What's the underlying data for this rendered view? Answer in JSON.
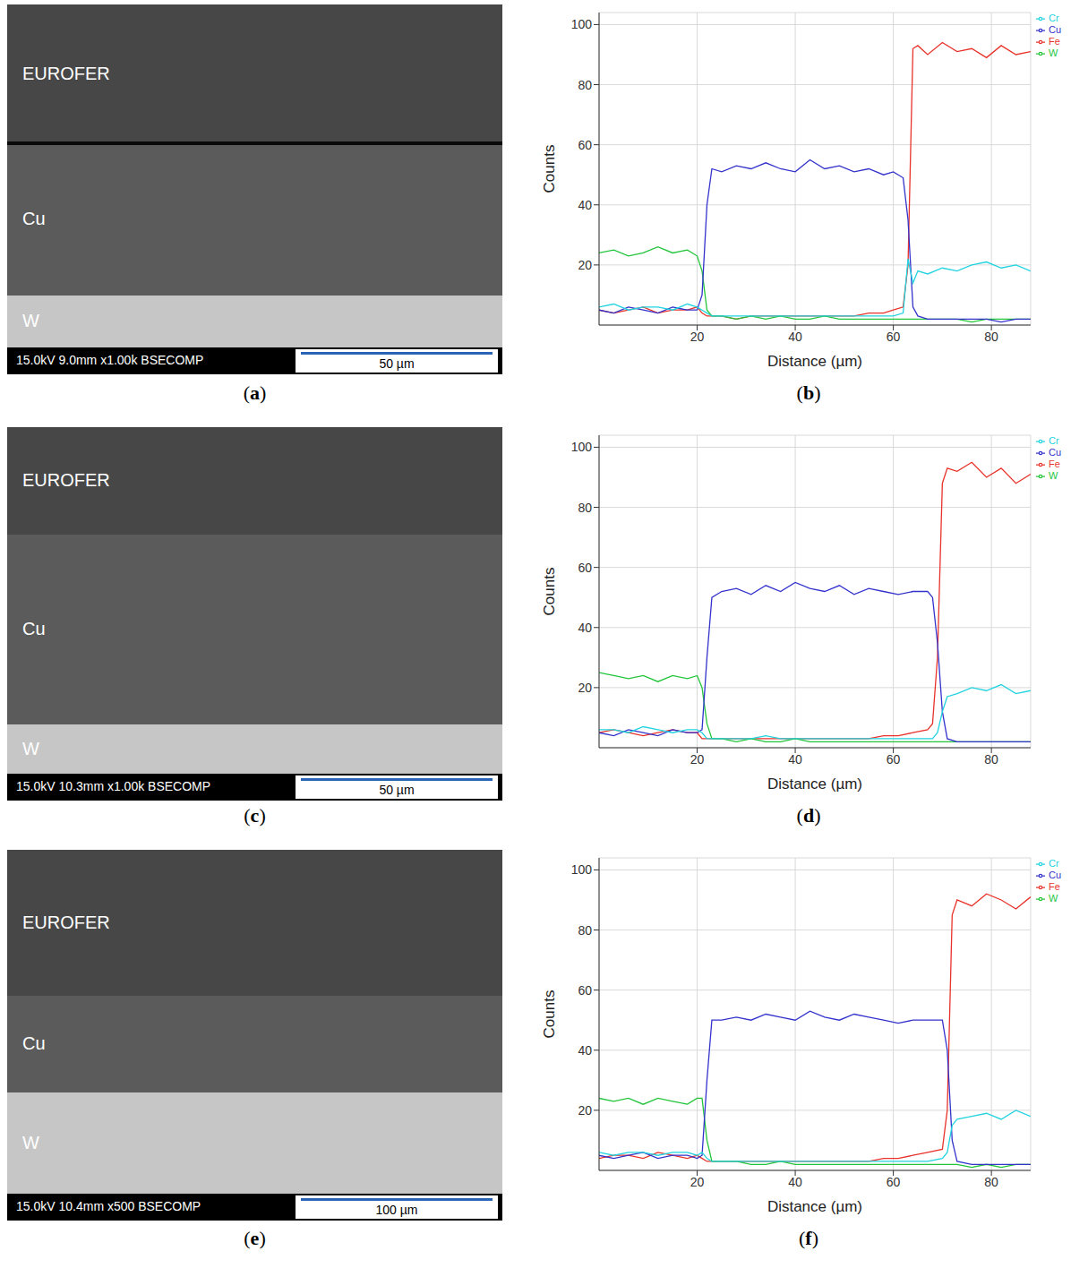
{
  "chart_data": [
    {
      "type": "line",
      "panel_label": "(b)",
      "x_label": "Distance (µm)",
      "y_label": "Counts",
      "xlim": [
        0,
        88
      ],
      "xticks": [
        20,
        40,
        60,
        80
      ],
      "ylim": [
        0,
        104
      ],
      "yticks": [
        20,
        40,
        60,
        80,
        100
      ],
      "grid": true,
      "legend": "right",
      "x": [
        0,
        3,
        6,
        9,
        12,
        15,
        18,
        20,
        21,
        22,
        23,
        25,
        28,
        31,
        34,
        37,
        40,
        43,
        46,
        49,
        52,
        55,
        58,
        60,
        62,
        63,
        64,
        65,
        67,
        70,
        73,
        76,
        79,
        82,
        85,
        88
      ],
      "series": [
        {
          "name": "Fe",
          "color": "#e8332a",
          "values": [
            5,
            4,
            5,
            6,
            4,
            5,
            5,
            6,
            4,
            3,
            3,
            3,
            2,
            3,
            3,
            3,
            3,
            3,
            3,
            3,
            3,
            4,
            4,
            5,
            6,
            20,
            92,
            93,
            90,
            94,
            91,
            92,
            89,
            93,
            90,
            91
          ]
        },
        {
          "name": "W",
          "color": "#22c53a",
          "values": [
            24,
            25,
            23,
            24,
            26,
            24,
            25,
            23,
            18,
            5,
            3,
            3,
            2,
            3,
            2,
            3,
            2,
            2,
            3,
            2,
            2,
            2,
            2,
            2,
            2,
            2,
            2,
            2,
            2,
            2,
            2,
            1,
            2,
            2,
            2,
            2
          ]
        },
        {
          "name": "Cu",
          "color": "#3333cc",
          "values": [
            5,
            4,
            6,
            5,
            4,
            6,
            5,
            5,
            10,
            40,
            52,
            51,
            53,
            52,
            54,
            52,
            51,
            55,
            52,
            53,
            51,
            52,
            50,
            51,
            49,
            35,
            6,
            3,
            2,
            2,
            2,
            2,
            2,
            1,
            2,
            2
          ]
        },
        {
          "name": "Cr",
          "color": "#22d3e0",
          "values": [
            6,
            7,
            5,
            6,
            6,
            5,
            7,
            6,
            5,
            4,
            3,
            3,
            3,
            3,
            3,
            3,
            3,
            3,
            3,
            3,
            3,
            3,
            3,
            3,
            4,
            22,
            14,
            18,
            17,
            19,
            18,
            20,
            21,
            19,
            20,
            18
          ]
        }
      ]
    },
    {
      "type": "line",
      "panel_label": "(d)",
      "x_label": "Distance (µm)",
      "y_label": "Counts",
      "xlim": [
        0,
        88
      ],
      "xticks": [
        20,
        40,
        60,
        80
      ],
      "ylim": [
        0,
        104
      ],
      "yticks": [
        20,
        40,
        60,
        80,
        100
      ],
      "grid": true,
      "legend": "right",
      "x": [
        0,
        3,
        6,
        9,
        12,
        15,
        18,
        20,
        21,
        22,
        23,
        25,
        28,
        31,
        34,
        37,
        40,
        43,
        46,
        49,
        52,
        55,
        58,
        61,
        64,
        67,
        68,
        69,
        70,
        71,
        73,
        76,
        79,
        82,
        85,
        88
      ],
      "series": [
        {
          "name": "Fe",
          "color": "#e8332a",
          "values": [
            5,
            6,
            5,
            4,
            5,
            6,
            5,
            5,
            3,
            3,
            3,
            3,
            3,
            3,
            3,
            3,
            3,
            3,
            3,
            3,
            3,
            3,
            4,
            4,
            5,
            6,
            8,
            30,
            88,
            93,
            92,
            95,
            90,
            93,
            88,
            91
          ]
        },
        {
          "name": "W",
          "color": "#22c53a",
          "values": [
            25,
            24,
            23,
            24,
            22,
            24,
            23,
            24,
            20,
            8,
            3,
            3,
            2,
            3,
            2,
            2,
            3,
            2,
            2,
            2,
            2,
            2,
            2,
            2,
            2,
            2,
            2,
            2,
            2,
            2,
            2,
            2,
            2,
            2,
            2,
            2
          ]
        },
        {
          "name": "Cu",
          "color": "#3333cc",
          "values": [
            5,
            4,
            6,
            5,
            4,
            6,
            5,
            5,
            6,
            30,
            50,
            52,
            53,
            51,
            54,
            52,
            55,
            53,
            52,
            54,
            51,
            53,
            52,
            51,
            52,
            52,
            50,
            35,
            12,
            3,
            2,
            2,
            2,
            2,
            2,
            2
          ]
        },
        {
          "name": "Cr",
          "color": "#22d3e0",
          "values": [
            6,
            6,
            5,
            7,
            6,
            5,
            6,
            6,
            5,
            3,
            3,
            3,
            3,
            3,
            4,
            3,
            3,
            3,
            3,
            3,
            3,
            3,
            3,
            3,
            3,
            3,
            3,
            5,
            12,
            17,
            18,
            20,
            19,
            21,
            18,
            19
          ]
        }
      ]
    },
    {
      "type": "line",
      "panel_label": "(f)",
      "x_label": "Distance (µm)",
      "y_label": "Counts",
      "xlim": [
        0,
        88
      ],
      "xticks": [
        20,
        40,
        60,
        80
      ],
      "ylim": [
        0,
        104
      ],
      "yticks": [
        20,
        40,
        60,
        80,
        100
      ],
      "grid": true,
      "legend": "right",
      "x": [
        0,
        3,
        6,
        9,
        12,
        15,
        18,
        20,
        21,
        22,
        23,
        25,
        28,
        31,
        34,
        37,
        40,
        43,
        46,
        49,
        52,
        55,
        58,
        61,
        64,
        67,
        70,
        71,
        72,
        73,
        76,
        79,
        82,
        85,
        88
      ],
      "series": [
        {
          "name": "Fe",
          "color": "#e8332a",
          "values": [
            4,
            5,
            5,
            4,
            6,
            5,
            4,
            5,
            4,
            3,
            3,
            3,
            3,
            3,
            3,
            3,
            3,
            3,
            3,
            3,
            3,
            3,
            4,
            4,
            5,
            6,
            7,
            20,
            85,
            90,
            88,
            92,
            90,
            87,
            91
          ]
        },
        {
          "name": "W",
          "color": "#22c53a",
          "values": [
            24,
            23,
            24,
            22,
            24,
            23,
            22,
            24,
            24,
            10,
            3,
            3,
            3,
            2,
            2,
            3,
            2,
            2,
            2,
            2,
            2,
            2,
            2,
            2,
            2,
            2,
            2,
            2,
            2,
            2,
            1,
            2,
            1,
            2,
            2
          ]
        },
        {
          "name": "Cu",
          "color": "#3333cc",
          "values": [
            5,
            4,
            5,
            6,
            4,
            5,
            5,
            4,
            5,
            30,
            50,
            50,
            51,
            50,
            52,
            51,
            50,
            53,
            51,
            50,
            52,
            51,
            50,
            49,
            50,
            50,
            50,
            40,
            10,
            3,
            2,
            2,
            2,
            2,
            2
          ]
        },
        {
          "name": "Cr",
          "color": "#22d3e0",
          "values": [
            6,
            5,
            6,
            6,
            5,
            6,
            6,
            5,
            6,
            4,
            3,
            3,
            3,
            3,
            3,
            3,
            3,
            3,
            3,
            3,
            3,
            3,
            3,
            3,
            3,
            3,
            4,
            6,
            15,
            17,
            18,
            19,
            17,
            20,
            18
          ]
        }
      ]
    }
  ],
  "micrographs": [
    {
      "panel_label": "(a)",
      "layers": [
        "EUROFER",
        "Cu",
        "W"
      ],
      "info": "15.0kV 9.0mm x1.00k BSECOMP",
      "scale_bar": "50 µm"
    },
    {
      "panel_label": "(c)",
      "layers": [
        "EUROFER",
        "Cu",
        "W"
      ],
      "info": "15.0kV 10.3mm x1.00k BSECOMP",
      "scale_bar": "50 µm"
    },
    {
      "panel_label": "(e)",
      "layers": [
        "EUROFER",
        "Cu",
        "W"
      ],
      "info": "15.0kV 10.4mm x500 BSECOMP",
      "scale_bar": "100 µm"
    }
  ]
}
